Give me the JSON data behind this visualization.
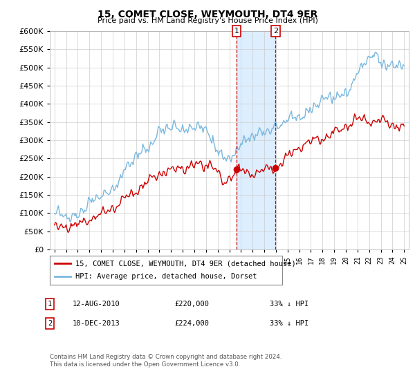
{
  "title": "15, COMET CLOSE, WEYMOUTH, DT4 9ER",
  "subtitle": "Price paid vs. HM Land Registry's House Price Index (HPI)",
  "hpi_label": "HPI: Average price, detached house, Dorset",
  "property_label": "15, COMET CLOSE, WEYMOUTH, DT4 9ER (detached house)",
  "sale1": {
    "date": "12-AUG-2010",
    "price": 220000,
    "hpi_pct": "33% ↓ HPI"
  },
  "sale2": {
    "date": "10-DEC-2013",
    "price": 224000,
    "hpi_pct": "33% ↓ HPI"
  },
  "footer": "Contains HM Land Registry data © Crown copyright and database right 2024.\nThis data is licensed under the Open Government Licence v3.0.",
  "ylim": [
    0,
    600000
  ],
  "yticks": [
    0,
    50000,
    100000,
    150000,
    200000,
    250000,
    300000,
    350000,
    400000,
    450000,
    500000,
    550000,
    600000
  ],
  "hpi_color": "#7ab8de",
  "property_color": "#cc0000",
  "marker_color": "#cc0000",
  "dashed_color": "#cc0000",
  "shade_color": "#ddeeff",
  "background_color": "#ffffff",
  "grid_color": "#cccccc"
}
